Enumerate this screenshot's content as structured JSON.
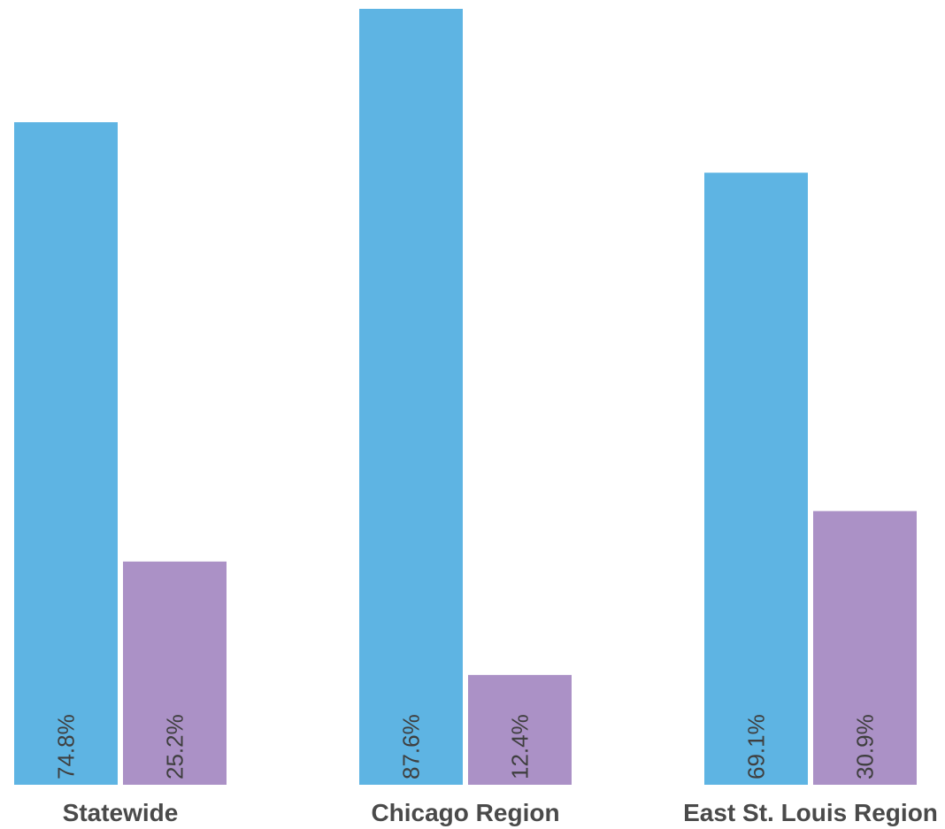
{
  "chart_data": {
    "type": "bar",
    "categories": [
      "Statewide",
      "Chicago Region",
      "East St. Louis Region"
    ],
    "series": [
      {
        "values": [
          74.8,
          87.6,
          69.1
        ],
        "labels": [
          "74.8%",
          "87.6%",
          "69.1%"
        ],
        "color": "#5eb4e3"
      },
      {
        "values": [
          25.2,
          12.4,
          30.9
        ],
        "labels": [
          "25.2%",
          "12.4%",
          "30.9%"
        ],
        "color": "#ab91c6"
      }
    ],
    "ylim": [
      0,
      87.6
    ],
    "grid": false,
    "legend": "none"
  }
}
